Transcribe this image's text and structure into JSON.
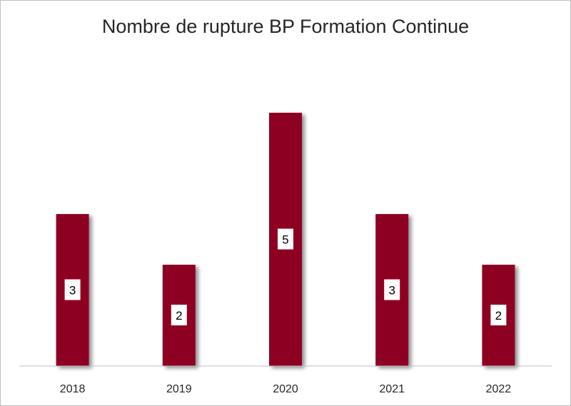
{
  "chart_data": {
    "type": "bar",
    "title": "Nombre de rupture BP Formation Continue",
    "xlabel": "",
    "ylabel": "",
    "categories": [
      "2018",
      "2019",
      "2020",
      "2021",
      "2022"
    ],
    "values": [
      3,
      2,
      5,
      3,
      2
    ],
    "ylim": [
      0,
      5
    ],
    "grid": false,
    "legend": "none",
    "bar_color": "#8e0020",
    "data_labels": true
  }
}
